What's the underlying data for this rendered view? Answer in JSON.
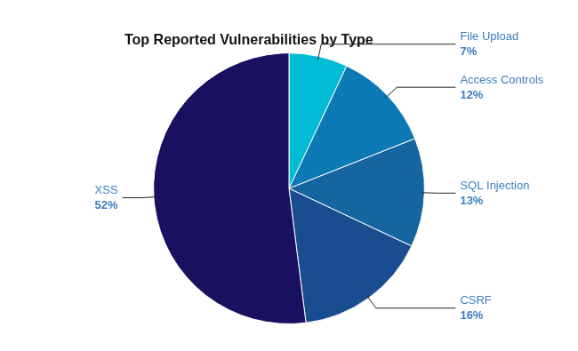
{
  "chart_data": {
    "type": "pie",
    "title": "Top Reported Vulnerabilities by Type",
    "categories": [
      "File Upload",
      "Access Controls",
      "SQL Injection",
      "CSRF",
      "XSS"
    ],
    "values": [
      7,
      12,
      13,
      16,
      52
    ],
    "value_labels": [
      "7%",
      "12%",
      "13%",
      "16%",
      "52%"
    ],
    "colors": [
      "#00bcd4",
      "#0d7ab5",
      "#1565a0",
      "#1a4d8f",
      "#1a1060"
    ],
    "data_labels": true,
    "legend": false
  }
}
